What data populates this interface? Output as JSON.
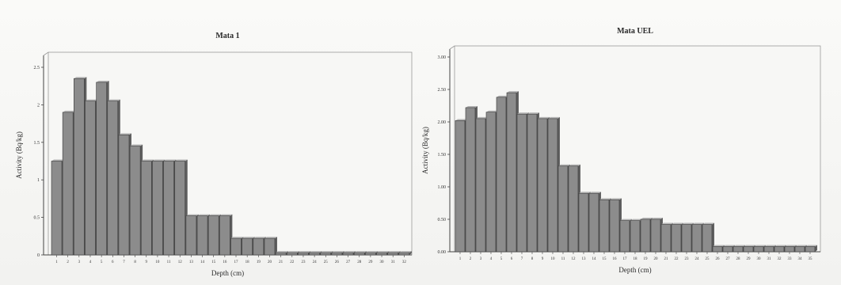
{
  "chart_data": [
    {
      "type": "bar",
      "title": "Mata 1",
      "xlabel": "Depth (cm)",
      "ylabel": "Activity (Bq/kg)",
      "ylim": [
        0,
        2.5
      ],
      "yticks": [
        "0",
        "0.5",
        "1",
        "1.5",
        "2",
        "2.5"
      ],
      "categories": [
        "1",
        "2",
        "3",
        "4",
        "5",
        "6",
        "7",
        "8",
        "9",
        "10",
        "11",
        "12",
        "13",
        "14",
        "15",
        "16",
        "17",
        "18",
        "19",
        "20",
        "21",
        "22",
        "23",
        "24",
        "25",
        "26",
        "27",
        "28",
        "29",
        "30",
        "31",
        "32"
      ],
      "values": [
        1.25,
        1.9,
        2.35,
        2.05,
        2.3,
        2.05,
        1.6,
        1.45,
        1.25,
        1.25,
        1.25,
        1.25,
        0.52,
        0.52,
        0.52,
        0.52,
        0.22,
        0.22,
        0.22,
        0.22,
        0.03,
        0.03,
        0.03,
        0.03,
        0.03,
        0.03,
        0.03,
        0.03,
        0.03,
        0.03,
        0.03,
        0.03
      ],
      "grid": false,
      "bar_color": "#8c8c8c"
    },
    {
      "type": "bar",
      "title": "Mata UEL",
      "xlabel": "Depth (cm)",
      "ylabel": "Activity (Bq/kg)",
      "ylim": [
        0,
        3.0
      ],
      "yticks": [
        "0.00",
        "0.50",
        "1.00",
        "1.50",
        "2.00",
        "2.50",
        "3.00"
      ],
      "categories": [
        "1",
        "2",
        "3",
        "4",
        "5",
        "6",
        "7",
        "8",
        "9",
        "10",
        "11",
        "12",
        "13",
        "14",
        "15",
        "16",
        "17",
        "18",
        "19",
        "20",
        "21",
        "22",
        "23",
        "24",
        "25",
        "26",
        "27",
        "28",
        "29",
        "30",
        "31",
        "32",
        "33",
        "34",
        "35"
      ],
      "values": [
        2.02,
        2.22,
        2.05,
        2.15,
        2.38,
        2.45,
        2.12,
        2.12,
        2.05,
        2.05,
        1.32,
        1.32,
        0.9,
        0.9,
        0.8,
        0.8,
        0.48,
        0.48,
        0.5,
        0.5,
        0.42,
        0.42,
        0.42,
        0.42,
        0.42,
        0.08,
        0.08,
        0.08,
        0.08,
        0.08,
        0.08,
        0.08,
        0.08,
        0.08,
        0.08
      ],
      "grid": false,
      "bar_color": "#8c8c8c"
    }
  ]
}
